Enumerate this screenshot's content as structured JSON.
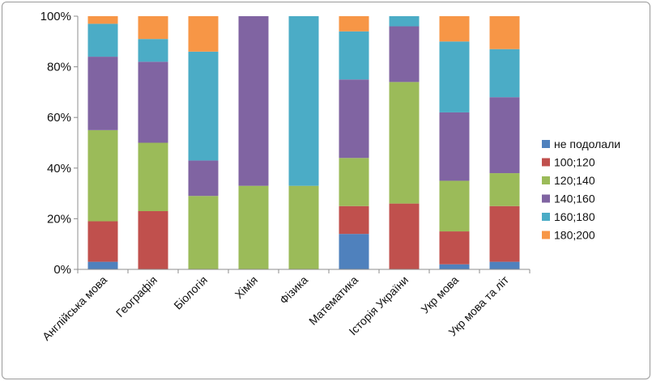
{
  "chart_data": {
    "type": "bar",
    "stacked": true,
    "percent": true,
    "categories": [
      "Англійська мова",
      "Географія",
      "Біологія",
      "Хімія",
      "Фізика",
      "Математика",
      "Історія України",
      "Укр мова",
      "Укр мова  та літ"
    ],
    "series": [
      {
        "name": "не подолали",
        "color": "#4F81BD",
        "values": [
          3,
          0,
          0,
          0,
          0,
          14,
          0,
          2,
          3
        ]
      },
      {
        "name": "100;120",
        "color": "#C0504D",
        "values": [
          16,
          23,
          0,
          0,
          0,
          11,
          26,
          13,
          22
        ]
      },
      {
        "name": "120;140",
        "color": "#9BBB59",
        "values": [
          36,
          27,
          29,
          33,
          33,
          19,
          48,
          20,
          13
        ]
      },
      {
        "name": "140;160",
        "color": "#8064A2",
        "values": [
          29,
          32,
          14,
          67,
          0,
          31,
          22,
          27,
          30
        ]
      },
      {
        "name": "160;180",
        "color": "#4BACC6",
        "values": [
          13,
          9,
          43,
          0,
          67,
          19,
          4,
          28,
          19
        ]
      },
      {
        "name": "180;200",
        "color": "#F79646",
        "values": [
          3,
          9,
          14,
          0,
          0,
          6,
          0,
          10,
          13
        ]
      }
    ],
    "y_ticks": [
      "0%",
      "20%",
      "40%",
      "60%",
      "80%",
      "100%"
    ],
    "ylim": [
      0,
      100
    ],
    "grid": false,
    "legend_position": "right"
  }
}
